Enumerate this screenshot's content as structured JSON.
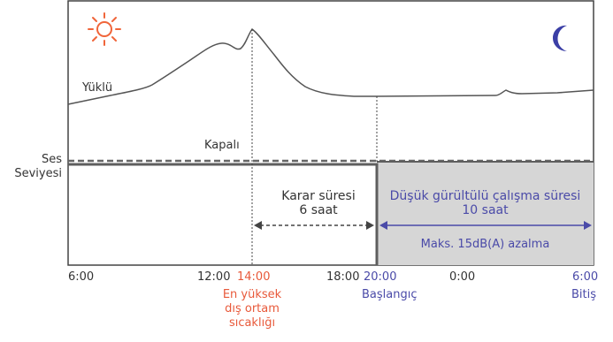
{
  "labels": {
    "loaded": "Yüklü",
    "off": "Kapalı",
    "sound_level_line1": "Ses",
    "sound_level_line2": "Seviyesi",
    "decision_line1": "Karar süresi",
    "decision_line2": "6 saat",
    "lownoise_line1": "Düşük gürültülü çalışma süresi",
    "lownoise_line2": "10 saat",
    "reduction": "Maks. 15dB(A) azalma"
  },
  "ticks": {
    "t0600": "6:00",
    "t1200": "12:00",
    "t1400": "14:00",
    "t1800": "18:00",
    "t2000": "20:00",
    "t0000": "0:00",
    "t0600b": "6:00"
  },
  "notes": {
    "peak_line1": "En yüksek",
    "peak_line2": "dış ortam",
    "peak_line3": "sıcaklığı",
    "start": "Başlangıç",
    "end": "Bitiş"
  },
  "icons": {
    "sun": "sun-icon",
    "moon": "crescent-moon-icon"
  },
  "colors": {
    "sun": "#f0653a",
    "moon": "#3b3fa6",
    "accent_red": "#e8593a",
    "accent_blue": "#4a4aa8",
    "shaded": "#d6d6d6"
  }
}
